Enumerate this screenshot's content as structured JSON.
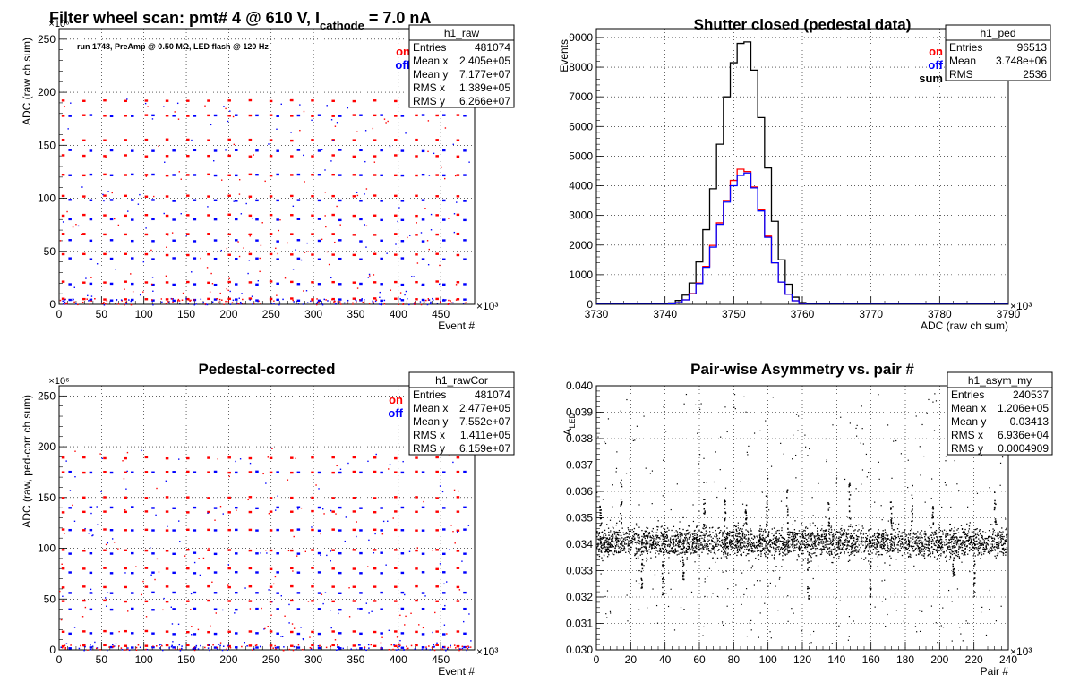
{
  "chart_data": [
    {
      "id": "raw",
      "type": "scatter",
      "title_main": "Filter wheel scan: pmt#   4 @   610 V, I",
      "title_sub": "cathode",
      "title_end": " = 7.0 nA",
      "note": "run 1748, PreAmp @ 0.50 MΩ, LED flash @  120 Hz",
      "ylabel": "ADC (raw ch sum)",
      "xlabel": "Event #",
      "xmult": "×10³",
      "ymult": "×10⁶",
      "xlim": [
        0,
        490
      ],
      "ylim": [
        0,
        260
      ],
      "xticks": [
        0,
        50,
        100,
        150,
        200,
        250,
        300,
        350,
        400,
        450
      ],
      "yticks": [
        0,
        50,
        100,
        150,
        200,
        250
      ],
      "legend": [
        {
          "label": "on",
          "color": "#ff0000"
        },
        {
          "label": "off",
          "color": "#0000ff"
        }
      ],
      "stats": {
        "name": "h1_raw",
        "rows": [
          [
            "Entries",
            "481074"
          ],
          [
            "Mean x",
            "2.405e+05"
          ],
          [
            "Mean y",
            "7.177e+07"
          ],
          [
            "RMS x",
            "1.389e+05"
          ],
          [
            "RMS y",
            "6.266e+07"
          ]
        ]
      },
      "levels_on": [
        192,
        178,
        155,
        140,
        122,
        102,
        84,
        66,
        47,
        21,
        5
      ],
      "levels_off": [
        178,
        145,
        122,
        98,
        80,
        60,
        43,
        19,
        4
      ],
      "level_start": 3,
      "level_period": 24.5
    },
    {
      "id": "ped",
      "type": "line",
      "title": "Shutter closed (pedestal data)",
      "ylabel": "Events",
      "xlabel": "ADC (raw ch sum)",
      "xmult": "×10³",
      "xlim": [
        3730,
        3790
      ],
      "ylim": [
        0,
        9300
      ],
      "xticks": [
        3730,
        3740,
        3750,
        3760,
        3770,
        3780,
        3790
      ],
      "yticks": [
        0,
        1000,
        2000,
        3000,
        4000,
        5000,
        6000,
        7000,
        8000,
        9000
      ],
      "legend": [
        {
          "label": "on",
          "color": "#ff0000"
        },
        {
          "label": "off",
          "color": "#0000ff"
        },
        {
          "label": "sum",
          "color": "#000000"
        }
      ],
      "stats": {
        "name": "h1_ped",
        "rows": [
          [
            "Entries",
            "96513"
          ],
          [
            "Mean",
            "3.748e+06"
          ],
          [
            "RMS",
            "2536"
          ]
        ]
      },
      "series": [
        {
          "name": "sum",
          "color": "#000000",
          "x0": 3740.5,
          "step": 1,
          "values": [
            50,
            130,
            310,
            720,
            1430,
            2520,
            3900,
            5400,
            7000,
            8150,
            8800,
            8850,
            7900,
            6300,
            4600,
            2800,
            1500,
            680,
            240,
            60
          ]
        },
        {
          "name": "on",
          "color": "#ff0000",
          "x0": 3740.5,
          "step": 1,
          "values": [
            20,
            60,
            150,
            360,
            720,
            1280,
            1990,
            2750,
            3500,
            4180,
            4560,
            4480,
            3960,
            3180,
            2300,
            1400,
            750,
            340,
            120,
            30
          ]
        },
        {
          "name": "off",
          "color": "#0000ff",
          "x0": 3740.5,
          "step": 1,
          "values": [
            20,
            60,
            150,
            350,
            700,
            1250,
            1930,
            2700,
            3450,
            4000,
            4350,
            4430,
            3930,
            3150,
            2260,
            1400,
            750,
            340,
            120,
            30
          ]
        }
      ]
    },
    {
      "id": "rawcor",
      "type": "scatter",
      "title": "Pedestal-corrected",
      "ylabel": "ADC (raw, ped-corr ch sum)",
      "xlabel": "Event #",
      "xmult": "×10³",
      "ymult": "×10⁶",
      "xlim": [
        0,
        490
      ],
      "ylim": [
        0,
        260
      ],
      "xticks": [
        0,
        50,
        100,
        150,
        200,
        250,
        300,
        350,
        400,
        450
      ],
      "yticks": [
        0,
        50,
        100,
        150,
        200,
        250
      ],
      "legend": [
        {
          "label": "on",
          "color": "#ff0000"
        },
        {
          "label": "off",
          "color": "#0000ff"
        }
      ],
      "stats": {
        "name": "h1_rawCor",
        "rows": [
          [
            "Entries",
            "481074"
          ],
          [
            "Mean x",
            "2.477e+05"
          ],
          [
            "Mean y",
            "7.552e+07"
          ],
          [
            "RMS x",
            "1.411e+05"
          ],
          [
            "RMS y",
            "6.159e+07"
          ]
        ]
      },
      "levels_on": [
        189,
        175,
        150,
        136,
        118,
        98,
        80,
        62,
        48,
        18,
        4
      ],
      "levels_off": [
        175,
        140,
        118,
        95,
        76,
        56,
        40,
        16,
        2
      ],
      "level_start": 3,
      "level_period": 24.5
    },
    {
      "id": "asym",
      "type": "scatter",
      "title": "Pair-wise Asymmetry vs. pair #",
      "ylabel": "A_LED",
      "xlabel": "Pair #",
      "xmult": "×10³",
      "xlim": [
        0,
        240
      ],
      "ylim": [
        0.03,
        0.04
      ],
      "xticks": [
        0,
        20,
        40,
        60,
        80,
        100,
        120,
        140,
        160,
        180,
        200,
        220,
        240
      ],
      "yticks": [
        0.03,
        0.031,
        0.032,
        0.033,
        0.034,
        0.035,
        0.036,
        0.037,
        0.038,
        0.039,
        0.04
      ],
      "stats": {
        "name": "h1_asym_my",
        "rows": [
          [
            "Entries",
            "240537"
          ],
          [
            "Mean x",
            "1.206e+05"
          ],
          [
            "Mean y",
            "0.03413"
          ],
          [
            "RMS x",
            "6.936e+04"
          ],
          [
            "RMS y",
            "0.0004909"
          ]
        ]
      },
      "band_center": 0.0341,
      "band_halfwidth": 0.0006,
      "spike_period": 12.1,
      "spike_amplitude": 0.0018
    }
  ]
}
